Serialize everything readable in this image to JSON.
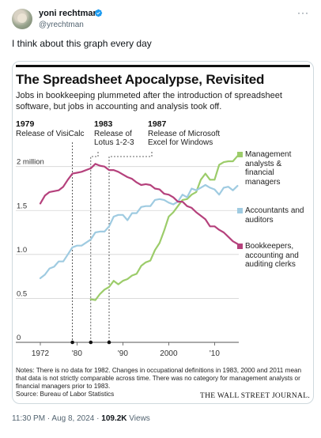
{
  "tweet": {
    "author_name": "yoni rechtman",
    "author_handle": "@yrechtman",
    "more_icon": "more-icon",
    "verified_color": "#1d9bf0",
    "text": "I think about this graph every day",
    "time": "11:30 PM",
    "separator": "·",
    "date": "Aug 8, 2024",
    "views_count": "109.2K",
    "views_label": "Views"
  },
  "graphic": {
    "title": "The Spreadsheet Apocalypse, Revisited",
    "subtitle": "Jobs in bookkeeping plummeted after the introduction of spreadsheet software, but jobs in accounting and analysis took off.",
    "events": [
      {
        "year": "1979",
        "label": "Release of VisiCalc"
      },
      {
        "year": "1983",
        "label": "Release of Lotus 1-2-3"
      },
      {
        "year": "1987",
        "label": "Release of Microsoft Excel for Windows"
      }
    ],
    "notes": "Notes: There is no data for 1982. Changes in occupational definitions in 1983, 2000 and 2011 mean that data is not strictly comparable across time. There was no category for management analysts or financial managers prior to 1983.",
    "source": "Source: Bureau of Labor Statistics",
    "publisher": "THE WALL STREET JOURNAL."
  },
  "chart_data": {
    "type": "line",
    "title": "The Spreadsheet Apocalypse, Revisited",
    "ylim": [
      0,
      2.15
    ],
    "xlim": [
      1970,
      2017
    ],
    "y_ticks": [
      {
        "value": 0,
        "label": "0"
      },
      {
        "value": 0.5,
        "label": "0.5"
      },
      {
        "value": 1.0,
        "label": "1.0"
      },
      {
        "value": 1.5,
        "label": "1.5"
      },
      {
        "value": 2.0,
        "label": "2 million"
      }
    ],
    "x_ticks": [
      {
        "value": 1972,
        "label": "1972"
      },
      {
        "value": 1980,
        "label": "'80"
      },
      {
        "value": 1990,
        "label": "'90"
      },
      {
        "value": 2000,
        "label": "2000"
      },
      {
        "value": 2010,
        "label": "'10"
      }
    ],
    "event_years": [
      1979,
      1983,
      1987
    ],
    "series": [
      {
        "name": "Management analysts & financial managers",
        "color": "#9ccc6a",
        "points": [
          [
            1983,
            0.49
          ],
          [
            1984,
            0.48
          ],
          [
            1985,
            0.55
          ],
          [
            1986,
            0.6
          ],
          [
            1987,
            0.63
          ],
          [
            1988,
            0.7
          ],
          [
            1989,
            0.66
          ],
          [
            1990,
            0.7
          ],
          [
            1991,
            0.72
          ],
          [
            1992,
            0.76
          ],
          [
            1993,
            0.78
          ],
          [
            1994,
            0.87
          ],
          [
            1995,
            0.91
          ],
          [
            1996,
            0.93
          ],
          [
            1997,
            1.05
          ],
          [
            1998,
            1.13
          ],
          [
            1999,
            1.27
          ],
          [
            2000,
            1.43
          ],
          [
            2001,
            1.48
          ],
          [
            2002,
            1.55
          ],
          [
            2003,
            1.62
          ],
          [
            2004,
            1.63
          ],
          [
            2005,
            1.68
          ],
          [
            2006,
            1.71
          ],
          [
            2007,
            1.85
          ],
          [
            2008,
            1.92
          ],
          [
            2009,
            1.85
          ],
          [
            2010,
            1.85
          ],
          [
            2011,
            2.02
          ],
          [
            2012,
            2.05
          ],
          [
            2013,
            2.06
          ],
          [
            2014,
            2.06
          ],
          [
            2015,
            2.12
          ]
        ]
      },
      {
        "name": "Accountants and auditors",
        "color": "#9fcbe1",
        "points": [
          [
            1972,
            0.73
          ],
          [
            1973,
            0.77
          ],
          [
            1974,
            0.84
          ],
          [
            1975,
            0.86
          ],
          [
            1976,
            0.92
          ],
          [
            1977,
            0.92
          ],
          [
            1978,
            1.0
          ],
          [
            1979,
            1.08
          ],
          [
            1980,
            1.1
          ],
          [
            1981,
            1.1
          ],
          [
            1983,
            1.17
          ],
          [
            1984,
            1.25
          ],
          [
            1985,
            1.26
          ],
          [
            1986,
            1.26
          ],
          [
            1987,
            1.32
          ],
          [
            1988,
            1.43
          ],
          [
            1989,
            1.45
          ],
          [
            1990,
            1.45
          ],
          [
            1991,
            1.39
          ],
          [
            1992,
            1.47
          ],
          [
            1993,
            1.47
          ],
          [
            1994,
            1.54
          ],
          [
            1995,
            1.55
          ],
          [
            1996,
            1.55
          ],
          [
            1997,
            1.62
          ],
          [
            1998,
            1.63
          ],
          [
            1999,
            1.62
          ],
          [
            2000,
            1.59
          ],
          [
            2001,
            1.57
          ],
          [
            2002,
            1.6
          ],
          [
            2003,
            1.68
          ],
          [
            2004,
            1.65
          ],
          [
            2005,
            1.75
          ],
          [
            2006,
            1.73
          ],
          [
            2007,
            1.76
          ],
          [
            2008,
            1.79
          ],
          [
            2009,
            1.76
          ],
          [
            2010,
            1.74
          ],
          [
            2011,
            1.68
          ],
          [
            2012,
            1.76
          ],
          [
            2013,
            1.77
          ],
          [
            2014,
            1.73
          ],
          [
            2015,
            1.78
          ]
        ]
      },
      {
        "name": "Bookkeepers, accounting and auditing clerks",
        "color": "#b5417c",
        "points": [
          [
            1972,
            1.58
          ],
          [
            1973,
            1.67
          ],
          [
            1974,
            1.71
          ],
          [
            1975,
            1.72
          ],
          [
            1976,
            1.73
          ],
          [
            1977,
            1.77
          ],
          [
            1978,
            1.85
          ],
          [
            1979,
            1.92
          ],
          [
            1980,
            1.93
          ],
          [
            1981,
            1.94
          ],
          [
            1983,
            1.98
          ],
          [
            1984,
            2.03
          ],
          [
            1985,
            2.01
          ],
          [
            1986,
            2.0
          ],
          [
            1987,
            1.96
          ],
          [
            1988,
            1.96
          ],
          [
            1989,
            1.94
          ],
          [
            1990,
            1.91
          ],
          [
            1991,
            1.88
          ],
          [
            1992,
            1.86
          ],
          [
            1993,
            1.82
          ],
          [
            1994,
            1.79
          ],
          [
            1995,
            1.8
          ],
          [
            1996,
            1.79
          ],
          [
            1997,
            1.75
          ],
          [
            1998,
            1.74
          ],
          [
            1999,
            1.69
          ],
          [
            2000,
            1.68
          ],
          [
            2001,
            1.65
          ],
          [
            2002,
            1.6
          ],
          [
            2003,
            1.6
          ],
          [
            2004,
            1.55
          ],
          [
            2005,
            1.53
          ],
          [
            2006,
            1.48
          ],
          [
            2007,
            1.44
          ],
          [
            2008,
            1.4
          ],
          [
            2009,
            1.32
          ],
          [
            2010,
            1.32
          ],
          [
            2011,
            1.28
          ],
          [
            2012,
            1.25
          ],
          [
            2013,
            1.2
          ],
          [
            2014,
            1.15
          ],
          [
            2015,
            1.12
          ]
        ]
      }
    ],
    "legend": [
      {
        "label": "Management analysts & financial managers",
        "color": "#9ccc6a"
      },
      {
        "label": "Accountants and auditors",
        "color": "#9fcbe1"
      },
      {
        "label": "Bookkeepers, accounting and auditing clerks",
        "color": "#b5417c"
      }
    ],
    "grid": true,
    "legend_position": "right"
  }
}
